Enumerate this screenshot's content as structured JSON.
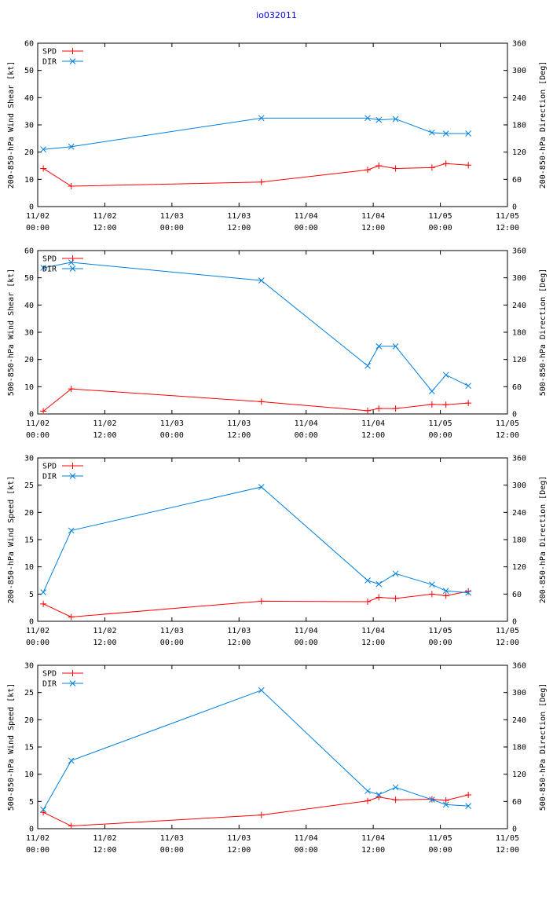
{
  "title": "io032011",
  "colors": {
    "spd": "#ff0000",
    "dir": "#0080e0",
    "title": "#0000ff"
  },
  "legend": {
    "spd": "SPD",
    "dir": "DIR"
  },
  "x_axis": {
    "ticks": [
      {
        "l1": "11/02",
        "l2": "00:00"
      },
      {
        "l1": "11/02",
        "l2": "12:00"
      },
      {
        "l1": "11/03",
        "l2": "00:00"
      },
      {
        "l1": "11/03",
        "l2": "12:00"
      },
      {
        "l1": "11/04",
        "l2": "00:00"
      },
      {
        "l1": "11/04",
        "l2": "12:00"
      },
      {
        "l1": "11/05",
        "l2": "00:00"
      },
      {
        "l1": "11/05",
        "l2": "12:00"
      }
    ],
    "range_hours": [
      0,
      84
    ]
  },
  "chart_data": [
    {
      "type": "line",
      "ylabel": "200-850-hPa Wind Shear [kt]",
      "y2label": "200-850-hPa Direction [Deg]",
      "ylim": [
        0,
        60
      ],
      "y2lim": [
        0,
        360
      ],
      "yticks": [
        0,
        10,
        20,
        30,
        40,
        50,
        60
      ],
      "y2ticks": [
        0,
        60,
        120,
        180,
        240,
        300,
        360
      ],
      "series": [
        {
          "name": "SPD",
          "axis": "left",
          "x": [
            1,
            6,
            40,
            59,
            61,
            64,
            70.5,
            73,
            77
          ],
          "values": [
            14,
            7.5,
            9,
            13.5,
            15,
            14,
            14.3,
            15.8,
            15.2
          ]
        },
        {
          "name": "DIR",
          "axis": "right",
          "x": [
            1,
            6,
            40,
            59,
            61,
            64,
            70.5,
            73,
            77
          ],
          "values": [
            126,
            132,
            195,
            195,
            191,
            193,
            163,
            161,
            161
          ]
        }
      ]
    },
    {
      "type": "line",
      "ylabel": "500-850-hPa Wind Shear [kt]",
      "y2label": "500-850-hPa Direction [Deg]",
      "ylim": [
        0,
        60
      ],
      "y2lim": [
        0,
        360
      ],
      "yticks": [
        0,
        10,
        20,
        30,
        40,
        50,
        60
      ],
      "y2ticks": [
        0,
        60,
        120,
        180,
        240,
        300,
        360
      ],
      "series": [
        {
          "name": "SPD",
          "axis": "left",
          "x": [
            1,
            6,
            40,
            59,
            61,
            64,
            70.5,
            73,
            77
          ],
          "values": [
            1,
            9.2,
            4.5,
            1.2,
            2,
            2,
            3.5,
            3.4,
            4
          ]
        },
        {
          "name": "DIR",
          "axis": "right",
          "x": [
            1,
            6,
            40,
            59,
            61,
            64,
            70.5,
            73,
            77
          ],
          "values": [
            322,
            334,
            294,
            106,
            149,
            149,
            50,
            86,
            62
          ]
        }
      ]
    },
    {
      "type": "line",
      "ylabel": "200-850-hPa Wind Speed [kt]",
      "y2label": "200-850-hPa Direction [Deg]",
      "ylim": [
        0,
        30
      ],
      "y2lim": [
        0,
        360
      ],
      "yticks": [
        0,
        5,
        10,
        15,
        20,
        25,
        30
      ],
      "y2ticks": [
        0,
        60,
        120,
        180,
        240,
        300,
        360
      ],
      "series": [
        {
          "name": "SPD",
          "axis": "left",
          "x": [
            1,
            6,
            40,
            59,
            61,
            64,
            70.5,
            73,
            77
          ],
          "values": [
            3.2,
            0.8,
            3.7,
            3.6,
            4.4,
            4.2,
            5,
            4.7,
            5.5
          ]
        },
        {
          "name": "DIR",
          "axis": "right",
          "x": [
            1,
            6,
            40,
            59,
            61,
            64,
            70.5,
            73,
            77
          ],
          "values": [
            64,
            200,
            296,
            90,
            82,
            105,
            81,
            67,
            63
          ]
        }
      ]
    },
    {
      "type": "line",
      "ylabel": "500-850-hPa Wind Speed [kt]",
      "y2label": "500-850-hPa Direction [Deg]",
      "ylim": [
        0,
        30
      ],
      "y2lim": [
        0,
        360
      ],
      "yticks": [
        0,
        5,
        10,
        15,
        20,
        25,
        30
      ],
      "y2ticks": [
        0,
        60,
        120,
        180,
        240,
        300,
        360
      ],
      "series": [
        {
          "name": "SPD",
          "axis": "left",
          "x": [
            1,
            6,
            40,
            59,
            61,
            64,
            70.5,
            73,
            77
          ],
          "values": [
            3,
            0.5,
            2.5,
            5.1,
            5.8,
            5.3,
            5.4,
            5.2,
            6.2
          ]
        },
        {
          "name": "DIR",
          "axis": "right",
          "x": [
            1,
            6,
            40,
            59,
            61,
            64,
            70.5,
            73,
            77
          ],
          "values": [
            42,
            150,
            305,
            83,
            75,
            91,
            64,
            53,
            50
          ]
        }
      ]
    }
  ]
}
